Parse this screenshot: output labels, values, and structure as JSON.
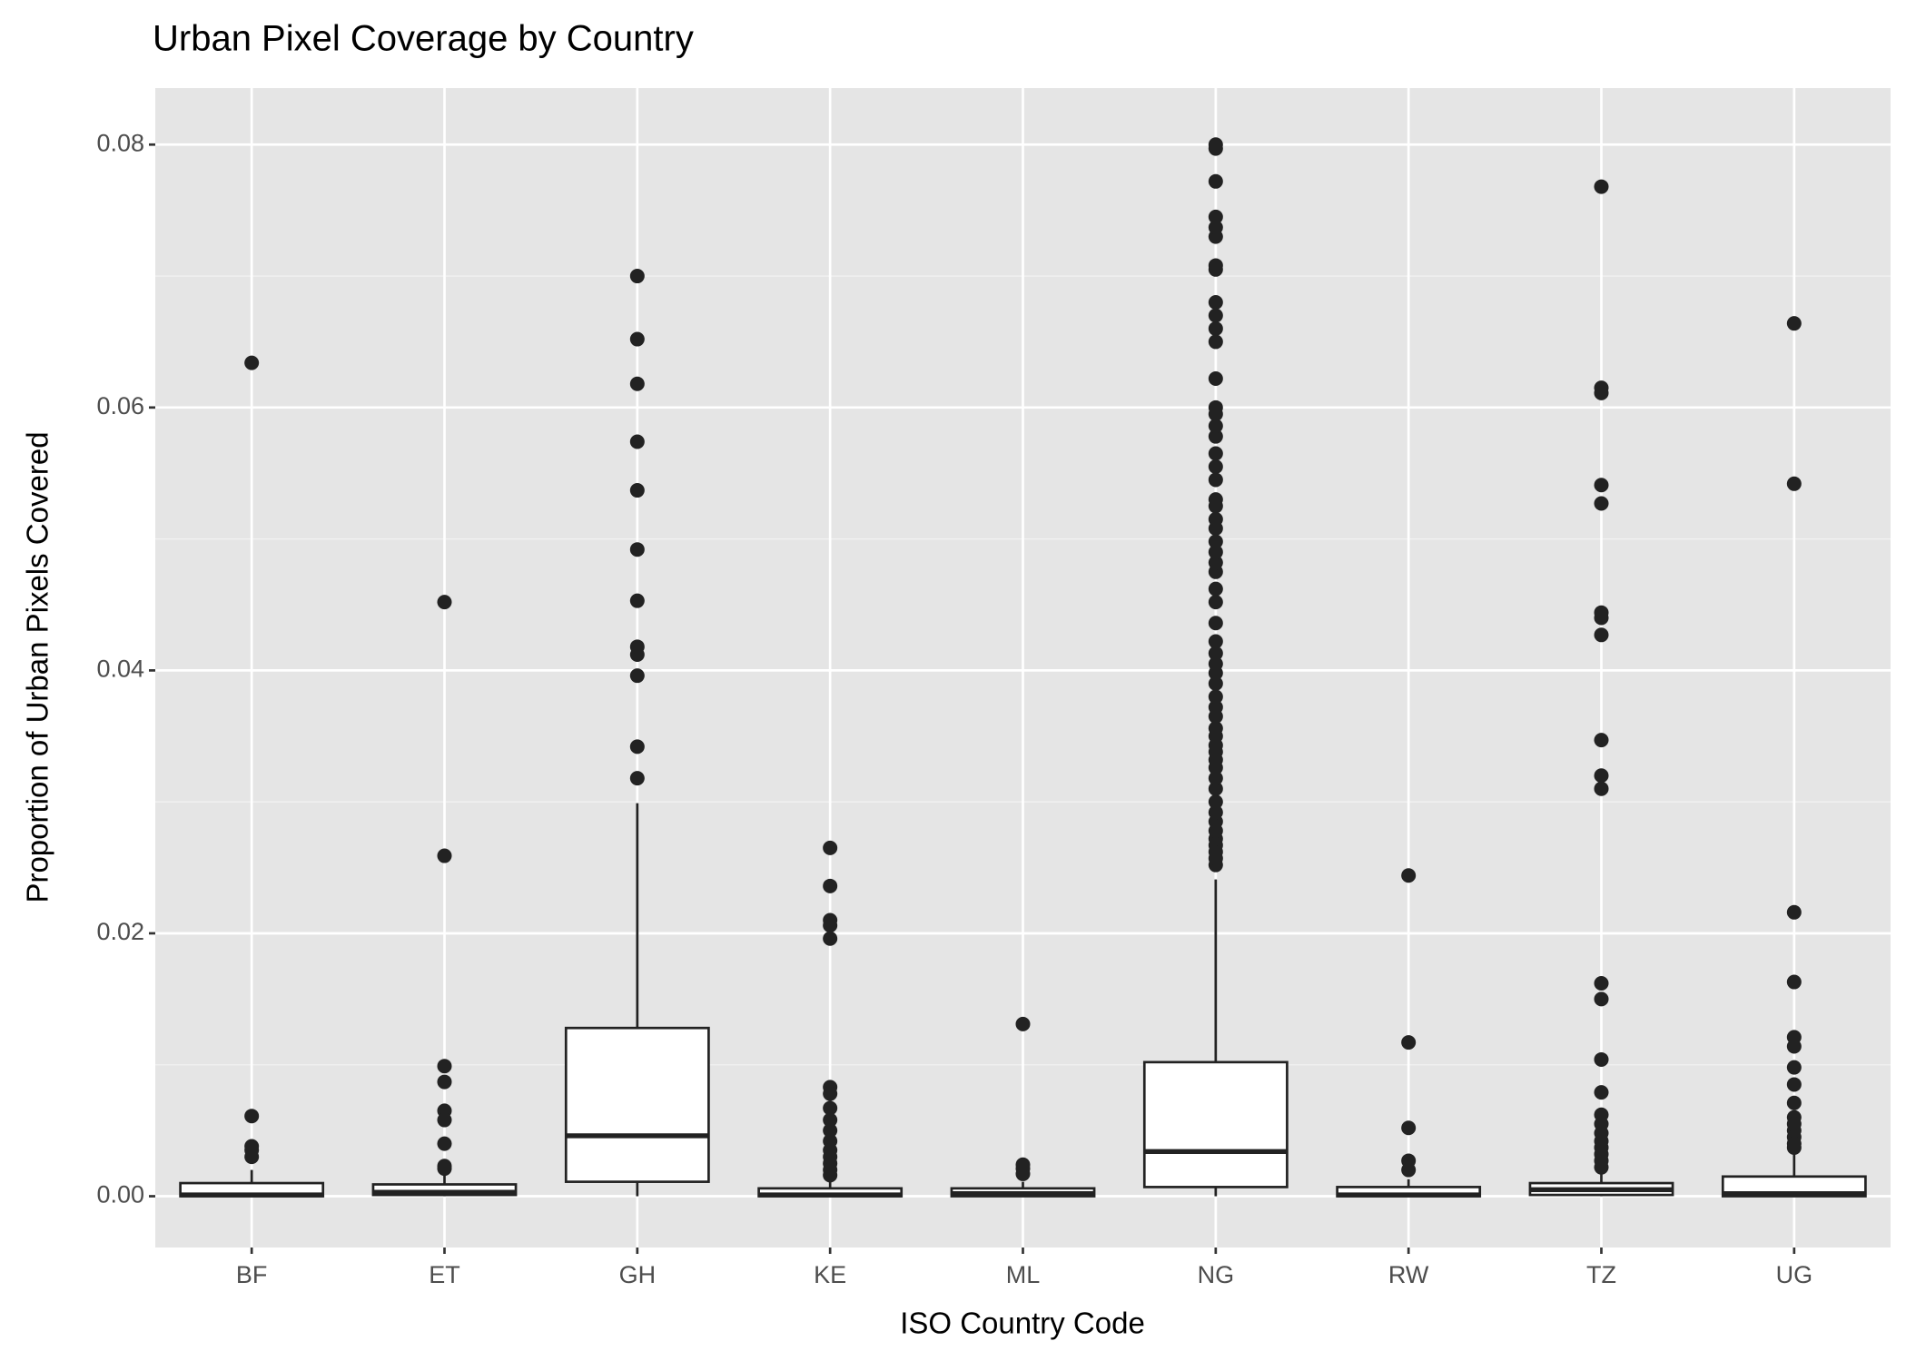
{
  "chart_data": {
    "type": "box",
    "title": "Urban Pixel Coverage by Country",
    "x_label": "ISO Country Code",
    "y_label": "Proportion of Urban Pixels Covered",
    "categories": [
      "BF",
      "ET",
      "GH",
      "KE",
      "ML",
      "NG",
      "RW",
      "TZ",
      "UG"
    ],
    "ylim": [
      -0.0039,
      0.0843
    ],
    "yticks": [
      {
        "value": 0,
        "label": "0.00"
      },
      {
        "value": 0.02,
        "label": "0.02"
      },
      {
        "value": 0.04,
        "label": "0.04"
      },
      {
        "value": 0.06,
        "label": "0.06"
      },
      {
        "value": 0.08,
        "label": "0.08"
      }
    ],
    "grid": true,
    "boxes": [
      {
        "whislo": 0,
        "q1": 0,
        "med": 0.0001,
        "q3": 0.001,
        "whishi": 0.002,
        "outliers": [
          0.0634,
          0.0061,
          0.0038,
          0.0035,
          0.003
        ]
      },
      {
        "whislo": 0,
        "q1": 0.0001,
        "med": 0.0003,
        "q3": 0.0009,
        "whishi": 0.0017,
        "outliers": [
          0.0452,
          0.0259,
          0.0099,
          0.0087,
          0.0065,
          0.0058,
          0.004,
          0.0023,
          0.0021
        ]
      },
      {
        "whislo": 0,
        "q1": 0.0011,
        "med": 0.0046,
        "q3": 0.0128,
        "whishi": 0.0299,
        "outliers": [
          0.0318,
          0.0342,
          0.0396,
          0.0412,
          0.0418,
          0.0453,
          0.0492,
          0.0537,
          0.0574,
          0.0618,
          0.0652,
          0.07
        ]
      },
      {
        "whislo": 0,
        "q1": 0,
        "med": 0.0001,
        "q3": 0.0006,
        "whishi": 0.0013,
        "outliers": [
          0.0265,
          0.0236,
          0.021,
          0.0206,
          0.0196,
          0.0083,
          0.0078,
          0.0067,
          0.0058,
          0.005,
          0.0042,
          0.0035,
          0.003,
          0.0025,
          0.002,
          0.0016
        ]
      },
      {
        "whislo": 0,
        "q1": 0,
        "med": 0.0002,
        "q3": 0.0006,
        "whishi": 0.0011,
        "outliers": [
          0.0131,
          0.0024,
          0.0021,
          0.0017
        ]
      },
      {
        "whislo": 0,
        "q1": 0.0007,
        "med": 0.0034,
        "q3": 0.0102,
        "whishi": 0.0241,
        "outliers": [
          0.0252,
          0.0257,
          0.0262,
          0.0267,
          0.0272,
          0.0278,
          0.0285,
          0.0292,
          0.03,
          0.031,
          0.0318,
          0.0326,
          0.0332,
          0.0338,
          0.0343,
          0.035,
          0.0356,
          0.0365,
          0.0372,
          0.038,
          0.039,
          0.0398,
          0.0405,
          0.0413,
          0.0422,
          0.0436,
          0.0452,
          0.0462,
          0.0475,
          0.0482,
          0.049,
          0.0498,
          0.0508,
          0.0515,
          0.0525,
          0.053,
          0.0545,
          0.0555,
          0.0565,
          0.0578,
          0.0586,
          0.0595,
          0.06,
          0.0622,
          0.065,
          0.066,
          0.067,
          0.068,
          0.0705,
          0.0708,
          0.073,
          0.0737,
          0.0745,
          0.0772,
          0.0797,
          0.08
        ]
      },
      {
        "whislo": 0,
        "q1": 0,
        "med": 0.0001,
        "q3": 0.0007,
        "whishi": 0.0013,
        "outliers": [
          0.0244,
          0.0117,
          0.0052,
          0.0027,
          0.002
        ]
      },
      {
        "whislo": 0,
        "q1": 0.0001,
        "med": 0.0005,
        "q3": 0.001,
        "whishi": 0.002,
        "outliers": [
          0.0768,
          0.0615,
          0.0611,
          0.0541,
          0.0527,
          0.0444,
          0.044,
          0.0427,
          0.0347,
          0.032,
          0.031,
          0.0162,
          0.015,
          0.0104,
          0.0079,
          0.0062,
          0.0055,
          0.0048,
          0.0042,
          0.0037,
          0.0032,
          0.0027,
          0.0022
        ]
      },
      {
        "whislo": 0,
        "q1": 0,
        "med": 0.0002,
        "q3": 0.0015,
        "whishi": 0.0036,
        "outliers": [
          0.0664,
          0.0542,
          0.0216,
          0.0163,
          0.0121,
          0.0114,
          0.0098,
          0.0085,
          0.0071,
          0.006,
          0.0055,
          0.005,
          0.0045,
          0.004,
          0.0037
        ]
      }
    ]
  }
}
